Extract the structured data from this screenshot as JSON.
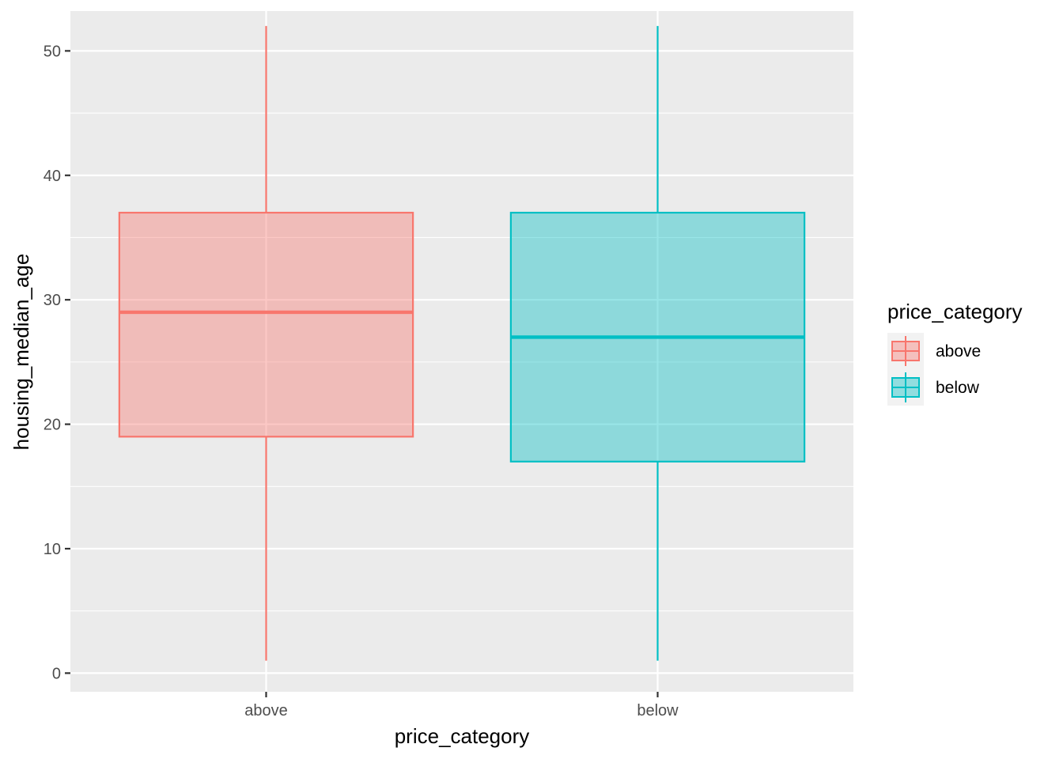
{
  "chart_data": {
    "type": "boxplot",
    "title": "",
    "xlabel": "price_category",
    "ylabel": "housing_median_age",
    "categories": [
      "above",
      "below"
    ],
    "ylim": [
      -1.5,
      53.2
    ],
    "yticks": [
      0,
      10,
      20,
      30,
      40,
      50
    ],
    "grid": true,
    "legend": {
      "title": "price_category",
      "position": "right",
      "entries": [
        "above",
        "below"
      ]
    },
    "series": [
      {
        "category": "above",
        "min": 1,
        "q1": 19,
        "median": 29,
        "q3": 37,
        "max": 52,
        "color": "#F8766D"
      },
      {
        "category": "below",
        "min": 1,
        "q1": 17,
        "median": 27,
        "q3": 37,
        "max": 52,
        "color": "#00BFC4"
      }
    ]
  }
}
